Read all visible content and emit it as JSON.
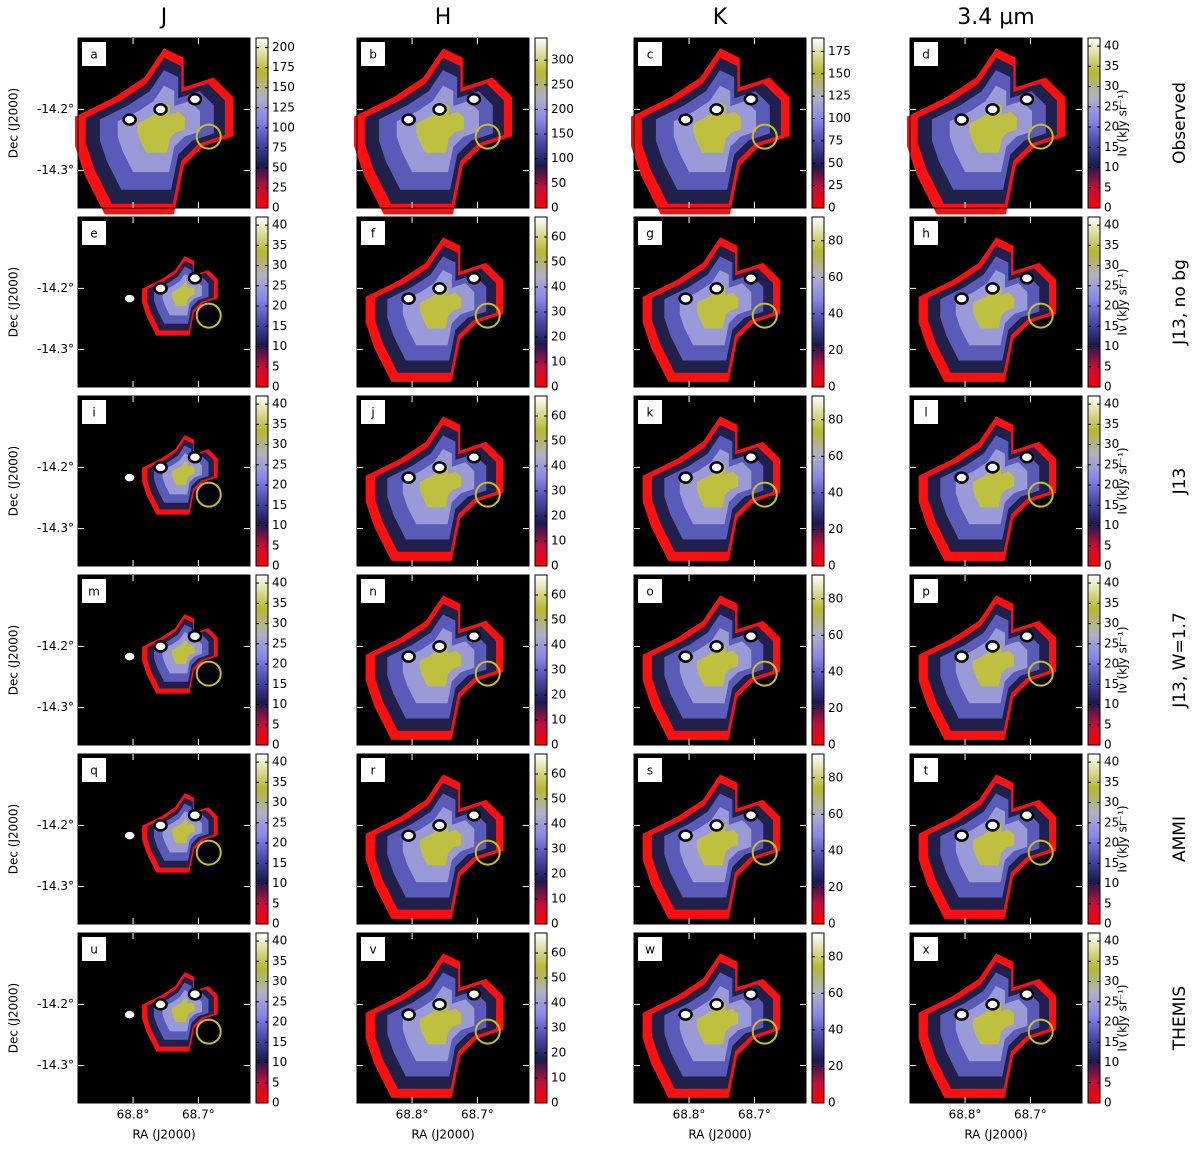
{
  "columns": [
    "J",
    "H",
    "K",
    "3.4 µm"
  ],
  "axes": {
    "ylabel": "Dec (J2000)",
    "xlabel": "RA (J2000)",
    "yticks": [
      "-14.2°",
      "-14.3°"
    ],
    "xticks": [
      "68.8°",
      "68.7°"
    ],
    "colorbar_label": "Iν (kJy sr⁻¹)"
  },
  "rows": [
    {
      "label": "Observed",
      "panels": [
        {
          "letter": "a",
          "colorbar": {
            "range": [
              0,
              212
            ],
            "ticks": [
              0,
              25,
              50,
              75,
              100,
              125,
              150,
              175,
              200
            ]
          }
        },
        {
          "letter": "b",
          "colorbar": {
            "range": [
              0,
              345
            ],
            "ticks": [
              0,
              50,
              100,
              150,
              200,
              250,
              300
            ]
          }
        },
        {
          "letter": "c",
          "colorbar": {
            "range": [
              0,
              190
            ],
            "ticks": [
              0,
              25,
              50,
              75,
              100,
              125,
              150,
              175
            ]
          }
        },
        {
          "letter": "d",
          "colorbar": {
            "range": [
              0,
              42
            ],
            "ticks": [
              0,
              5,
              10,
              15,
              20,
              25,
              30,
              35,
              40
            ]
          }
        }
      ]
    },
    {
      "label": "J13, no bg",
      "panels": [
        {
          "letter": "e",
          "colorbar": {
            "range": [
              0,
              42
            ],
            "ticks": [
              0,
              5,
              10,
              15,
              20,
              25,
              30,
              35,
              40
            ]
          }
        },
        {
          "letter": "f",
          "colorbar": {
            "range": [
              0,
              68
            ],
            "ticks": [
              0,
              10,
              20,
              30,
              40,
              50,
              60
            ]
          }
        },
        {
          "letter": "g",
          "colorbar": {
            "range": [
              0,
              93
            ],
            "ticks": [
              0,
              20,
              40,
              60,
              80
            ]
          }
        },
        {
          "letter": "h",
          "colorbar": {
            "range": [
              0,
              42
            ],
            "ticks": [
              0,
              5,
              10,
              15,
              20,
              25,
              30,
              35,
              40
            ]
          }
        }
      ]
    },
    {
      "label": "J13",
      "panels": [
        {
          "letter": "i",
          "colorbar": {
            "range": [
              0,
              42
            ],
            "ticks": [
              0,
              5,
              10,
              15,
              20,
              25,
              30,
              35,
              40
            ]
          }
        },
        {
          "letter": "j",
          "colorbar": {
            "range": [
              0,
              68
            ],
            "ticks": [
              0,
              10,
              20,
              30,
              40,
              50,
              60
            ]
          }
        },
        {
          "letter": "k",
          "colorbar": {
            "range": [
              0,
              93
            ],
            "ticks": [
              0,
              20,
              40,
              60,
              80
            ]
          }
        },
        {
          "letter": "l",
          "colorbar": {
            "range": [
              0,
              42
            ],
            "ticks": [
              0,
              5,
              10,
              15,
              20,
              25,
              30,
              35,
              40
            ]
          }
        }
      ]
    },
    {
      "label": "J13, W=1.7",
      "panels": [
        {
          "letter": "m",
          "colorbar": {
            "range": [
              0,
              42
            ],
            "ticks": [
              0,
              5,
              10,
              15,
              20,
              25,
              30,
              35,
              40
            ]
          }
        },
        {
          "letter": "n",
          "colorbar": {
            "range": [
              0,
              68
            ],
            "ticks": [
              0,
              10,
              20,
              30,
              40,
              50,
              60
            ]
          }
        },
        {
          "letter": "o",
          "colorbar": {
            "range": [
              0,
              93
            ],
            "ticks": [
              0,
              20,
              40,
              60,
              80
            ]
          }
        },
        {
          "letter": "p",
          "colorbar": {
            "range": [
              0,
              42
            ],
            "ticks": [
              0,
              5,
              10,
              15,
              20,
              25,
              30,
              35,
              40
            ]
          }
        }
      ]
    },
    {
      "label": "AMMI",
      "panels": [
        {
          "letter": "q",
          "colorbar": {
            "range": [
              0,
              42
            ],
            "ticks": [
              0,
              5,
              10,
              15,
              20,
              25,
              30,
              35,
              40
            ]
          }
        },
        {
          "letter": "r",
          "colorbar": {
            "range": [
              0,
              68
            ],
            "ticks": [
              0,
              10,
              20,
              30,
              40,
              50,
              60
            ]
          }
        },
        {
          "letter": "s",
          "colorbar": {
            "range": [
              0,
              93
            ],
            "ticks": [
              0,
              20,
              40,
              60,
              80
            ]
          }
        },
        {
          "letter": "t",
          "colorbar": {
            "range": [
              0,
              42
            ],
            "ticks": [
              0,
              5,
              10,
              15,
              20,
              25,
              30,
              35,
              40
            ]
          }
        }
      ]
    },
    {
      "label": "THEMIS",
      "panels": [
        {
          "letter": "u",
          "colorbar": {
            "range": [
              0,
              42
            ],
            "ticks": [
              0,
              5,
              10,
              15,
              20,
              25,
              30,
              35,
              40
            ]
          }
        },
        {
          "letter": "v",
          "colorbar": {
            "range": [
              0,
              68
            ],
            "ticks": [
              0,
              10,
              20,
              30,
              40,
              50,
              60
            ]
          }
        },
        {
          "letter": "w",
          "colorbar": {
            "range": [
              0,
              93
            ],
            "ticks": [
              0,
              20,
              40,
              60,
              80
            ]
          }
        },
        {
          "letter": "x",
          "colorbar": {
            "range": [
              0,
              42
            ],
            "ticks": [
              0,
              5,
              10,
              15,
              20,
              25,
              30,
              35,
              40
            ]
          }
        }
      ]
    }
  ]
}
